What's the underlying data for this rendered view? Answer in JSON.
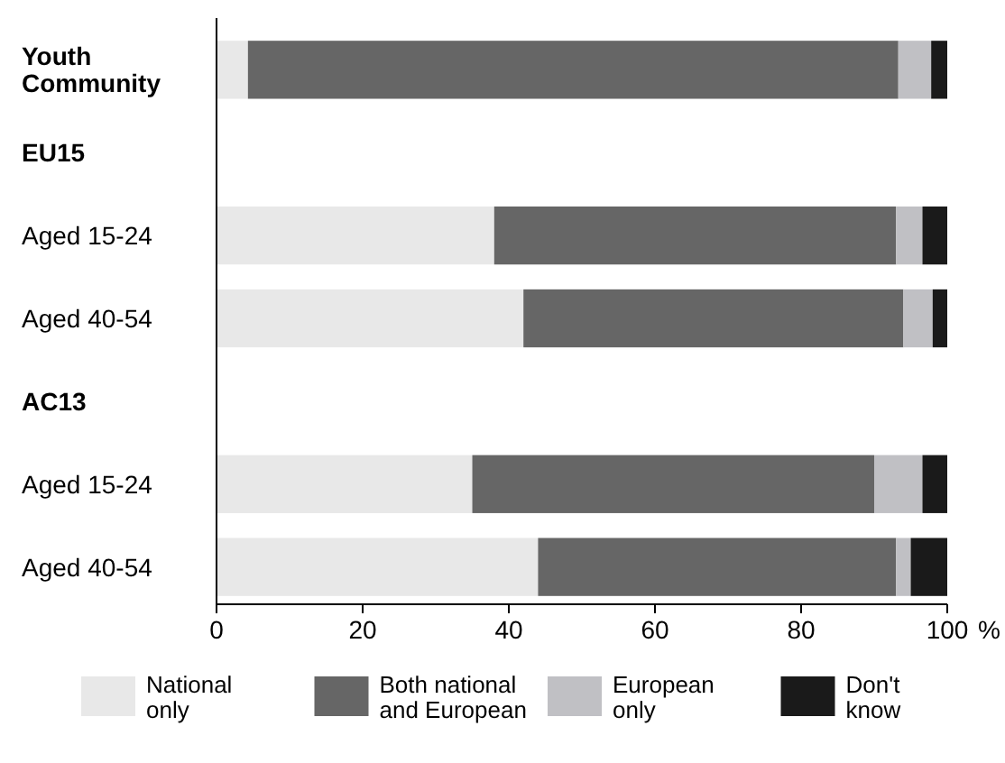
{
  "chart_data": {
    "type": "bar",
    "orientation": "horizontal",
    "stacked": true,
    "categories": [
      "Youth Community",
      "EU15",
      "Aged 15-24",
      "Aged 40-54",
      "AC13",
      "Aged 15-24",
      "Aged 40-54"
    ],
    "series": [
      {
        "name": "National only",
        "color": "#e8e8e8",
        "values": [
          4.3,
          null,
          38,
          42,
          null,
          35,
          44
        ]
      },
      {
        "name": "Both national and European",
        "color": "#666666",
        "values": [
          89,
          null,
          55,
          52,
          null,
          55,
          49
        ]
      },
      {
        "name": "European only",
        "color": "#c0c0c4",
        "values": [
          4.5,
          null,
          3.6,
          4,
          null,
          6.6,
          2
        ]
      },
      {
        "name": "Don't know",
        "color": "#1a1a1a",
        "values": [
          2.2,
          null,
          3.4,
          2,
          null,
          3.4,
          5
        ]
      }
    ],
    "xlim": [
      0,
      100
    ],
    "xticks": [
      0,
      20,
      40,
      60,
      80,
      100
    ],
    "xlabel": "%",
    "grid": false,
    "legend": "bottom"
  }
}
